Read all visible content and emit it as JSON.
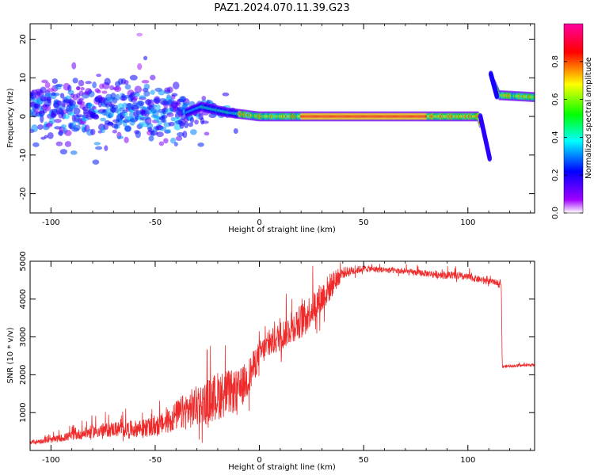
{
  "title": "PAZ1.2024.070.11.39.G23",
  "chart_data": [
    {
      "type": "heatmap",
      "title": "PAZ1.2024.070.11.39.G23",
      "xlabel": "Height of straight line (km)",
      "ylabel": "Frequency (Hz)",
      "xlim": [
        -110,
        132
      ],
      "ylim": [
        -25,
        24
      ],
      "xticks": [
        -100,
        -50,
        0,
        50,
        100
      ],
      "yticks": [
        -20,
        -10,
        0,
        10,
        20
      ],
      "colorbar": {
        "label": "Normalized spectral amplitude",
        "ticks": [
          0.0,
          0.2,
          0.4,
          0.6,
          0.8
        ],
        "tick_labels": [
          "0.0",
          "0.2",
          "0.4",
          "0.6",
          "0.8"
        ],
        "colors": [
          "#ffffff",
          "#a000ff",
          "#0000ff",
          "#00ffff",
          "#00ff00",
          "#ffff00",
          "#ff0000",
          "#ff00a0"
        ]
      },
      "ridge": [
        {
          "x": -110,
          "y": 2
        },
        {
          "x": -35,
          "y": 1
        },
        {
          "x": -28,
          "y": 2.5
        },
        {
          "x": -15,
          "y": 1
        },
        {
          "x": 0,
          "y": 0
        },
        {
          "x": 20,
          "y": 0
        },
        {
          "x": 50,
          "y": 0
        },
        {
          "x": 80,
          "y": 0
        },
        {
          "x": 105,
          "y": 0
        },
        {
          "x": 108,
          "y": -6
        },
        {
          "x": 110,
          "y": -11
        },
        {
          "x": 111,
          "y": 10
        },
        {
          "x": 113,
          "y": 8
        },
        {
          "x": 115,
          "y": 5.5
        },
        {
          "x": 132,
          "y": 5
        }
      ]
    },
    {
      "type": "line",
      "xlabel": "Height of straight line (km)",
      "ylabel": "SNR (10 * v/v)",
      "xlim": [
        -110,
        132
      ],
      "ylim": [
        0,
        5000
      ],
      "xticks": [
        -100,
        -50,
        0,
        50,
        100
      ],
      "yticks": [
        1000,
        2000,
        3000,
        4000,
        5000
      ],
      "color": "#ee2a2a",
      "series": [
        {
          "x": [
            -110,
            -100,
            -90,
            -80,
            -70,
            -60,
            -50,
            -45,
            -40,
            -35,
            -30,
            -25,
            -20,
            -15,
            -10,
            -5,
            0,
            5,
            10,
            15,
            20,
            25,
            30,
            35,
            40,
            50,
            60,
            70,
            80,
            90,
            100,
            110,
            116,
            116.5,
            120,
            132
          ],
          "y": [
            200,
            250,
            350,
            450,
            500,
            500,
            550,
            650,
            800,
            900,
            1000,
            1100,
            1250,
            1350,
            1400,
            1800,
            2450,
            2700,
            2900,
            3100,
            3300,
            3600,
            3900,
            4300,
            4650,
            4780,
            4750,
            4700,
            4650,
            4600,
            4550,
            4450,
            4400,
            2200,
            2220,
            2250
          ],
          "noise": [
            100,
            150,
            250,
            350,
            400,
            450,
            500,
            600,
            800,
            1000,
            1100,
            1200,
            1300,
            1200,
            1100,
            1000,
            700,
            700,
            800,
            800,
            900,
            900,
            900,
            700,
            300,
            180,
            160,
            160,
            180,
            200,
            200,
            160,
            140,
            80,
            70,
            70
          ]
        }
      ]
    }
  ]
}
